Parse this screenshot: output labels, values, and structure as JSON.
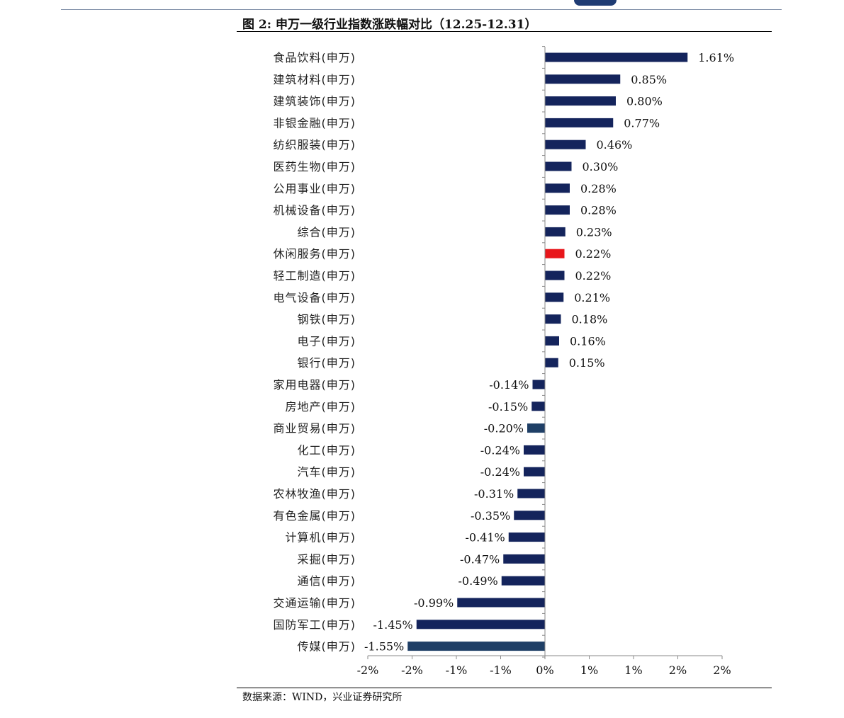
{
  "figure": {
    "title": "图 2:  申万一级行业指数涨跌幅对比（12.25-12.31）",
    "source": "数据来源：WIND，兴业证券研究所"
  },
  "chart_data": {
    "type": "bar",
    "orientation": "horizontal",
    "title": "图 2:  申万一级行业指数涨跌幅对比（12.25-12.31）",
    "xlabel": "",
    "ylabel": "",
    "xlim": [
      -2,
      2
    ],
    "x_tick_labels": [
      "-2%",
      "-2%",
      "-1%",
      "-1%",
      "0%",
      "1%",
      "1%",
      "2%",
      "2%"
    ],
    "grid": false,
    "legend": "none",
    "colors": {
      "default_bar": "#14245c",
      "highlight_bar": "#e8161b",
      "alt_bar": "#1f3f66"
    },
    "categories": [
      "食品饮料(申万)",
      "建筑材料(申万)",
      "建筑装饰(申万)",
      "非银金融(申万)",
      "纺织服装(申万)",
      "医药生物(申万)",
      "公用事业(申万)",
      "机械设备(申万)",
      "综合(申万)",
      "休闲服务(申万)",
      "轻工制造(申万)",
      "电气设备(申万)",
      "钢铁(申万)",
      "电子(申万)",
      "银行(申万)",
      "家用电器(申万)",
      "房地产(申万)",
      "商业贸易(申万)",
      "化工(申万)",
      "汽车(申万)",
      "农林牧渔(申万)",
      "有色金属(申万)",
      "计算机(申万)",
      "采掘(申万)",
      "通信(申万)",
      "交通运输(申万)",
      "国防军工(申万)",
      "传媒(申万)"
    ],
    "values": [
      1.61,
      0.85,
      0.8,
      0.77,
      0.46,
      0.3,
      0.28,
      0.28,
      0.23,
      0.22,
      0.22,
      0.21,
      0.18,
      0.16,
      0.15,
      -0.14,
      -0.15,
      -0.2,
      -0.24,
      -0.24,
      -0.31,
      -0.35,
      -0.41,
      -0.47,
      -0.49,
      -0.99,
      -1.45,
      -1.55
    ],
    "value_labels": [
      "1.61%",
      "0.85%",
      "0.80%",
      "0.77%",
      "0.46%",
      "0.30%",
      "0.28%",
      "0.28%",
      "0.23%",
      "0.22%",
      "0.22%",
      "0.21%",
      "0.18%",
      "0.16%",
      "0.15%",
      "-0.14%",
      "-0.15%",
      "-0.20%",
      "-0.24%",
      "-0.24%",
      "-0.31%",
      "-0.35%",
      "-0.41%",
      "-0.47%",
      "-0.49%",
      "-0.99%",
      "-1.45%",
      "-1.55%"
    ],
    "highlight_index": 9,
    "alt_color_indices": [
      17,
      27
    ]
  }
}
